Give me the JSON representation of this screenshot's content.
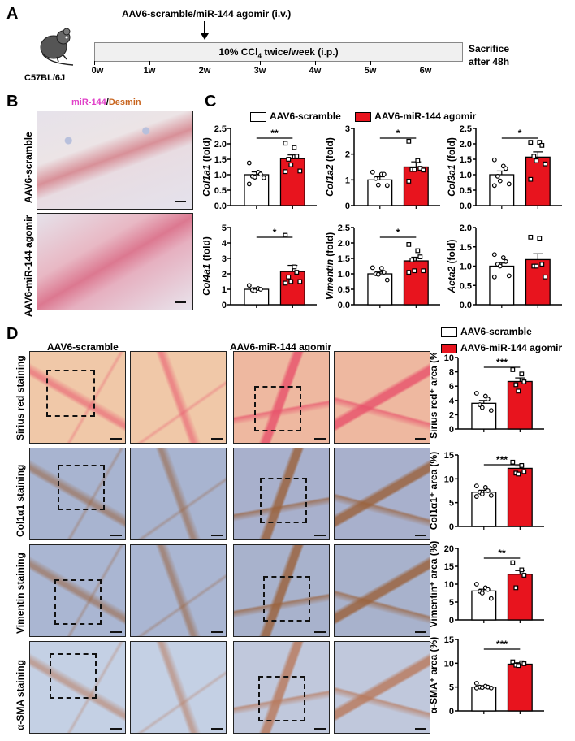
{
  "panel_a": {
    "letter": "A",
    "mouse_label": "C57BL/6J",
    "injection_label": "AAV6-scramble/miR-144 agomir (i.v.)",
    "bar_label_pre": "10% CCl",
    "bar_label_sub": "4",
    "bar_label_post": " twice/week (i.p.)",
    "end_label_line1": "Sacrifice",
    "end_label_line2": "after 48h",
    "ticks": [
      "0w",
      "1w",
      "2w",
      "3w",
      "4w",
      "5w",
      "6w"
    ]
  },
  "panel_b": {
    "letter": "B",
    "title_mir": "miR-144",
    "title_sep": "/",
    "title_desmin": "Desmin",
    "row_labels": [
      "AAV6-scramble",
      "AAV6-miR-144 agomir"
    ],
    "colors": {
      "mir": "#e040c8",
      "desmin": "#c8641e"
    }
  },
  "panel_c": {
    "letter": "C",
    "legend": [
      "AAV6-scramble",
      "AAV6-miR-144 agomir"
    ]
  },
  "panel_d": {
    "letter": "D",
    "group_titles": [
      "AAV6-scramble",
      "AAV6-miR-144 agomir"
    ],
    "row_labels": [
      "Sirius red staining",
      "Col1α1 staining",
      "Vimentin staining",
      "α-SMA staining"
    ],
    "legend": [
      "AAV6-scramble",
      "AAV6-miR-144 agomir"
    ]
  },
  "colors": {
    "control": "#ffffff",
    "agomir": "#e8141e",
    "axis": "#000000"
  },
  "chart_data": [
    {
      "type": "bar",
      "panel": "C",
      "ylabel": "Col1a1 (fold)",
      "categories": [
        "AAV6-scramble",
        "AAV6-miR-144 agomir"
      ],
      "values": [
        1.0,
        1.52
      ],
      "errors": [
        0.09,
        0.12
      ],
      "ylim": [
        0,
        2.5
      ],
      "yticks": [
        0.0,
        0.5,
        1.0,
        1.5,
        2.0,
        2.5
      ],
      "significance": "**",
      "points": [
        [
          1.38,
          1.08,
          1.02,
          0.95,
          0.92,
          0.9,
          0.7
        ],
        [
          2.02,
          1.88,
          1.6,
          1.5,
          1.32,
          1.12,
          1.1
        ]
      ]
    },
    {
      "type": "bar",
      "panel": "C",
      "ylabel": "Col1a2 (fold)",
      "categories": [
        "AAV6-scramble",
        "AAV6-miR-144 agomir"
      ],
      "values": [
        1.0,
        1.5
      ],
      "errors": [
        0.12,
        0.2
      ],
      "ylim": [
        0,
        3
      ],
      "yticks": [
        0,
        1,
        2,
        3
      ],
      "significance": "*",
      "points": [
        [
          1.3,
          1.22,
          1.22,
          1.05,
          0.8,
          0.78
        ],
        [
          2.5,
          1.75,
          1.45,
          1.4,
          1.4,
          1.38,
          0.95
        ]
      ]
    },
    {
      "type": "bar",
      "panel": "C",
      "ylabel": "Col3a1 (fold)",
      "categories": [
        "AAV6-scramble",
        "AAV6-miR-144 agomir"
      ],
      "values": [
        1.0,
        1.57
      ],
      "errors": [
        0.12,
        0.17
      ],
      "ylim": [
        0,
        2.5
      ],
      "yticks": [
        0.0,
        0.5,
        1.0,
        1.5,
        2.0,
        2.5
      ],
      "significance": "*",
      "points": [
        [
          1.48,
          1.28,
          1.2,
          0.95,
          0.8,
          0.7,
          0.65
        ],
        [
          2.05,
          2.05,
          1.95,
          1.6,
          1.45,
          1.35,
          0.85
        ]
      ]
    },
    {
      "type": "bar",
      "panel": "C",
      "ylabel": "Col4a1 (fold)",
      "categories": [
        "AAV6-scramble",
        "AAV6-miR-144 agomir"
      ],
      "values": [
        1.0,
        2.15
      ],
      "errors": [
        0.1,
        0.4
      ],
      "ylim": [
        0,
        5
      ],
      "yticks": [
        0,
        1,
        2,
        3,
        4,
        5
      ],
      "significance": "*",
      "points": [
        [
          1.25,
          1.05,
          1.0,
          0.95,
          0.9
        ],
        [
          4.5,
          2.45,
          2.1,
          1.8,
          1.5,
          1.5,
          1.4
        ]
      ]
    },
    {
      "type": "bar",
      "panel": "C",
      "ylabel": "Vimentin (fold)",
      "categories": [
        "AAV6-scramble",
        "AAV6-miR-144 agomir"
      ],
      "values": [
        1.0,
        1.42
      ],
      "errors": [
        0.06,
        0.12
      ],
      "ylim": [
        0,
        2.5
      ],
      "yticks": [
        0.0,
        0.5,
        1.0,
        1.5,
        2.0,
        2.5
      ],
      "significance": "*",
      "points": [
        [
          1.2,
          1.18,
          1.05,
          1.0,
          0.98,
          0.8
        ],
        [
          1.95,
          1.75,
          1.55,
          1.45,
          1.1,
          1.1,
          1.05
        ]
      ]
    },
    {
      "type": "bar",
      "panel": "C",
      "ylabel": "Acta2 (fold)",
      "categories": [
        "AAV6-scramble",
        "AAV6-miR-144 agomir"
      ],
      "values": [
        1.0,
        1.17
      ],
      "errors": [
        0.08,
        0.15
      ],
      "ylim": [
        0,
        2.0
      ],
      "yticks": [
        0.0,
        0.5,
        1.0,
        1.5,
        2.0
      ],
      "significance": "",
      "points": [
        [
          1.3,
          1.22,
          1.12,
          1.05,
          1.0,
          0.75,
          0.72
        ],
        [
          1.75,
          1.72,
          1.05,
          1.0,
          1.0,
          0.72
        ]
      ]
    },
    {
      "type": "bar",
      "panel": "D",
      "ylabel": "Sirius red⁺ area (%)",
      "categories": [
        "AAV6-scramble",
        "AAV6-miR-144 agomir"
      ],
      "values": [
        3.6,
        6.65
      ],
      "errors": [
        0.4,
        0.5
      ],
      "ylim": [
        0,
        10
      ],
      "yticks": [
        0,
        2,
        4,
        6,
        8,
        10
      ],
      "significance": "***",
      "points": [
        [
          5.0,
          4.6,
          4.2,
          3.4,
          3.0,
          2.6
        ],
        [
          8.3,
          7.7,
          6.6,
          6.2,
          5.3
        ]
      ]
    },
    {
      "type": "bar",
      "panel": "D",
      "ylabel": "Col1α1⁺ area (%)",
      "categories": [
        "AAV6-scramble",
        "AAV6-miR-144 agomir"
      ],
      "values": [
        7.2,
        12.2
      ],
      "errors": [
        0.4,
        0.5
      ],
      "ylim": [
        0,
        15
      ],
      "yticks": [
        0,
        5,
        10,
        15
      ],
      "significance": "***",
      "points": [
        [
          8.5,
          8.2,
          7.5,
          7.2,
          6.8,
          6.5,
          6.3
        ],
        [
          13.5,
          12.8,
          11.5,
          11.2,
          11.0
        ]
      ]
    },
    {
      "type": "bar",
      "panel": "D",
      "ylabel": "Vimentin⁺ area (%)",
      "categories": [
        "AAV6-scramble",
        "AAV6-miR-144 agomir"
      ],
      "values": [
        8.1,
        12.8
      ],
      "errors": [
        0.5,
        1.0
      ],
      "ylim": [
        0,
        20
      ],
      "yticks": [
        0,
        5,
        10,
        15,
        20
      ],
      "significance": "**",
      "points": [
        [
          10.0,
          9.0,
          8.5,
          8.0,
          7.5,
          6.0
        ],
        [
          16.0,
          14.0,
          12.5,
          9.0
        ]
      ]
    },
    {
      "type": "bar",
      "panel": "D",
      "ylabel": "α-SMA⁺ area (%)",
      "categories": [
        "AAV6-scramble",
        "AAV6-miR-144 agomir"
      ],
      "values": [
        5.0,
        9.8
      ],
      "errors": [
        0.3,
        0.3
      ],
      "ylim": [
        0,
        15
      ],
      "yticks": [
        0,
        5,
        10,
        15
      ],
      "significance": "***",
      "points": [
        [
          5.8,
          5.2,
          5.0,
          5.0,
          4.9,
          4.8,
          4.8
        ],
        [
          10.3,
          10.1,
          9.9,
          9.6,
          9.5
        ]
      ]
    }
  ]
}
